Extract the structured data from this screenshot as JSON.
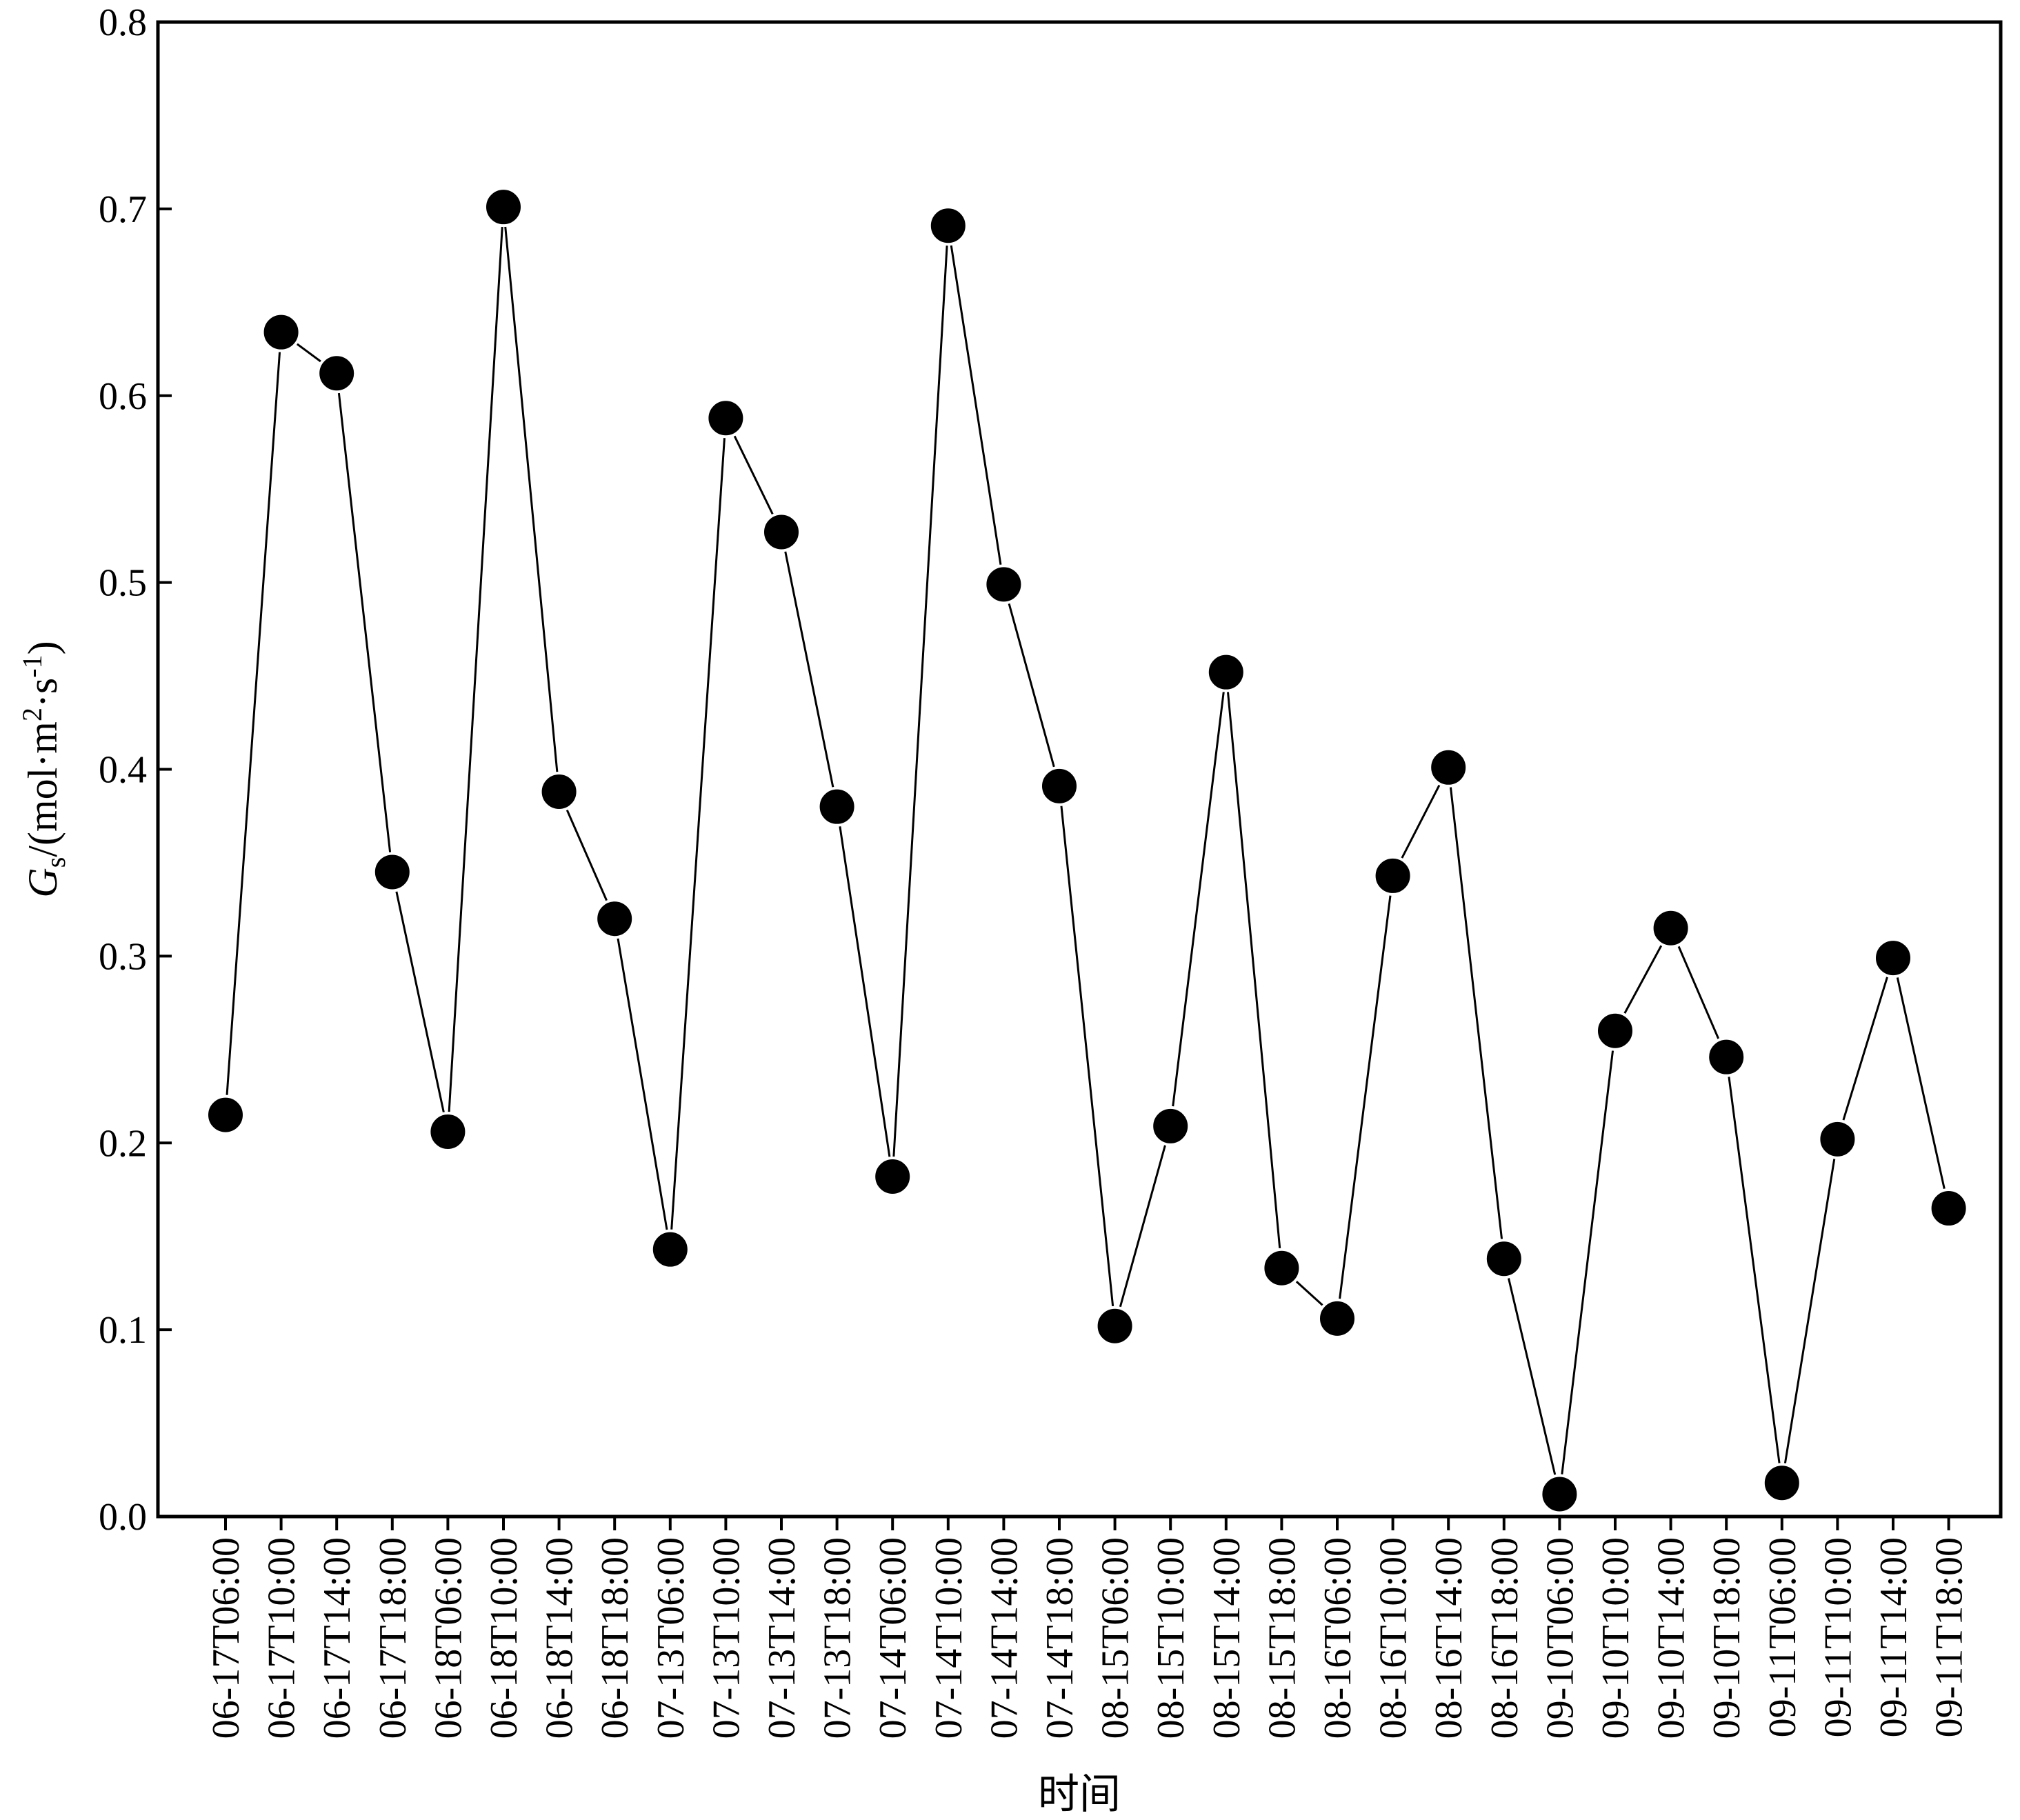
{
  "chart_data": {
    "type": "line",
    "title": "",
    "xlabel": "时间",
    "ylabel": {
      "base": "G",
      "sub": "s",
      "mid": "/(mol·m",
      "sup1": "2",
      "mid2": "·s",
      "sup2": "-1",
      "end": ")"
    },
    "ylim": [
      0.0,
      0.8
    ],
    "yticks": [
      "0.0",
      "0.1",
      "0.2",
      "0.3",
      "0.4",
      "0.5",
      "0.6",
      "0.7",
      "0.8"
    ],
    "categories": [
      "06-17T06:00",
      "06-17T10:00",
      "06-17T14:00",
      "06-17T18:00",
      "06-18T06:00",
      "06-18T10:00",
      "06-18T14:00",
      "06-18T18:00",
      "07-13T06:00",
      "07-13T10:00",
      "07-13T14:00",
      "07-13T18:00",
      "07-14T06:00",
      "07-14T10:00",
      "07-14T14:00",
      "07-14T18:00",
      "08-15T06:00",
      "08-15T10:00",
      "08-15T14:00",
      "08-15T18:00",
      "08-16T06:00",
      "08-16T10:00",
      "08-16T14:00",
      "08-16T18:00",
      "09-10T06:00",
      "09-10T10:00",
      "09-10T14:00",
      "09-10T18:00",
      "09-11T06:00",
      "09-11T10:00",
      "09-11T14:00",
      "09-11T18:00"
    ],
    "values": [
      0.215,
      0.634,
      0.612,
      0.345,
      0.206,
      0.701,
      0.388,
      0.32,
      0.143,
      0.588,
      0.527,
      0.38,
      0.182,
      0.691,
      0.499,
      0.391,
      0.102,
      0.209,
      0.452,
      0.133,
      0.106,
      0.343,
      0.401,
      0.138,
      0.012,
      0.26,
      0.315,
      0.246,
      0.018,
      0.202,
      0.299,
      0.165
    ],
    "marker": "filled-circle",
    "color": "#000000",
    "grid": false,
    "legend": "none"
  }
}
